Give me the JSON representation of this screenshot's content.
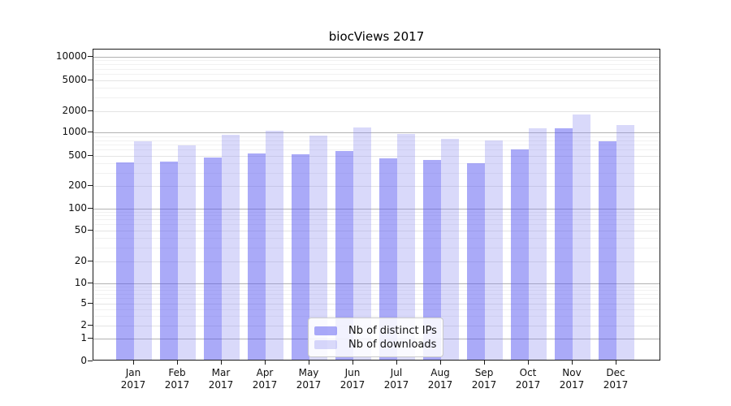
{
  "chart_data": {
    "type": "bar",
    "title": "biocViews 2017",
    "categories": [
      "Jan 2017",
      "Feb 2017",
      "Mar 2017",
      "Apr 2017",
      "May 2017",
      "Jun 2017",
      "Jul 2017",
      "Aug 2017",
      "Sep 2017",
      "Oct 2017",
      "Nov 2017",
      "Dec 2017"
    ],
    "series": [
      {
        "name": "Nb of distinct IPs",
        "color": "rgba(85,85,241,0.5)",
        "values": [
          395,
          405,
          450,
          510,
          500,
          545,
          440,
          420,
          385,
          580,
          1080,
          740
        ]
      },
      {
        "name": "Nb of downloads",
        "color": "rgba(140,140,240,0.33)",
        "values": [
          740,
          645,
          895,
          1000,
          870,
          1110,
          905,
          795,
          760,
          1100,
          1710,
          1210
        ]
      }
    ],
    "yticks": [
      0,
      1,
      2,
      5,
      10,
      20,
      50,
      100,
      200,
      500,
      1000,
      2000,
      5000,
      10000
    ],
    "yscale": "log",
    "ylim": [
      0,
      13000
    ],
    "xlabel": "",
    "ylabel": "",
    "grid": "on",
    "legend_position": "bottom-center"
  },
  "style": {
    "grid_decade_color": "#b2b2b2",
    "grid_labeled_color": "#e4e4e4",
    "grid_minor_color": "#f1f1f1",
    "axis_color": "#1a1a1a"
  }
}
